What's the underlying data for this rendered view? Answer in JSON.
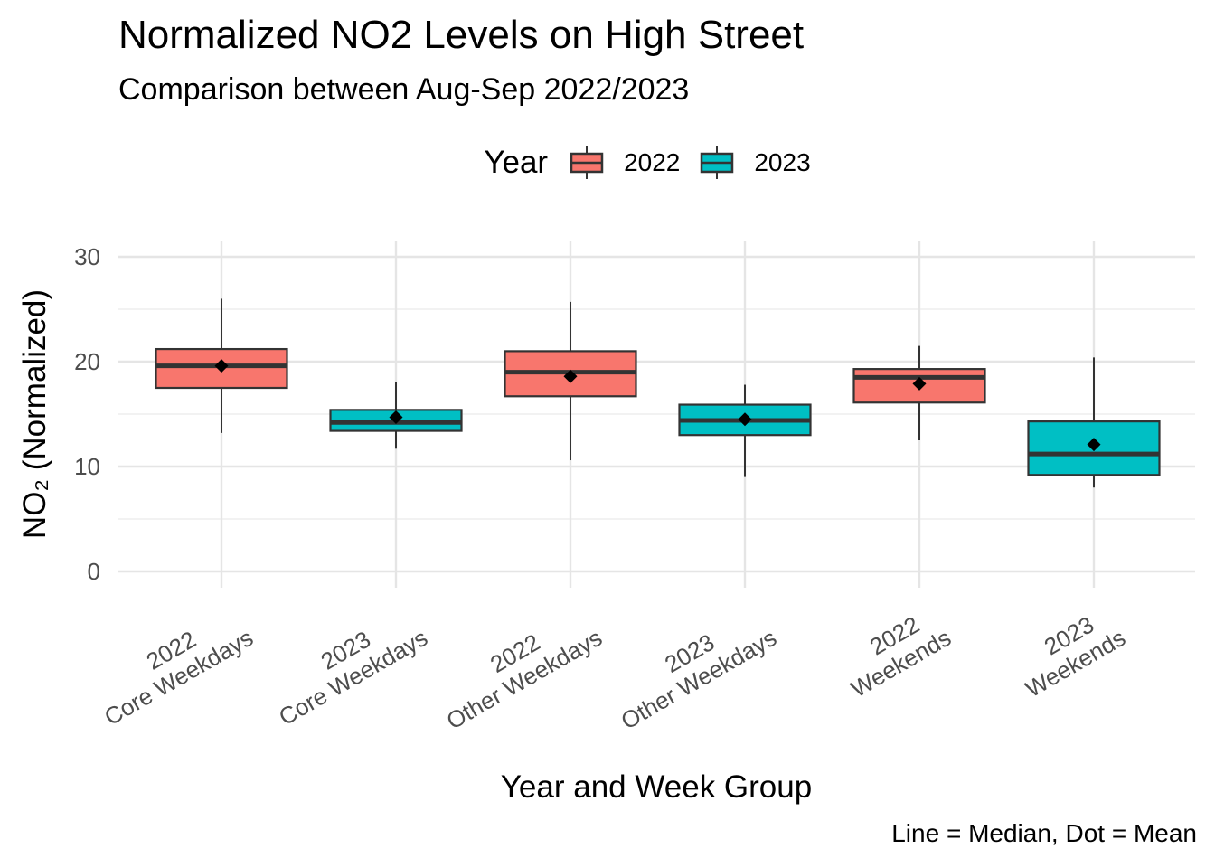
{
  "chart_data": {
    "type": "box",
    "title": "Normalized NO2 Levels on High Street",
    "subtitle": "Comparison between Aug-Sep 2022/2023",
    "xlabel": "Year and Week Group",
    "ylabel": "NO₂ (Normalized)",
    "caption": "Line = Median, Dot = Mean",
    "ylim": [
      0,
      30
    ],
    "yticks": [
      0,
      10,
      20,
      30
    ],
    "grid": true,
    "legend": {
      "title": "Year",
      "position": "top",
      "entries": [
        {
          "label": "2022",
          "color": "#F8766D"
        },
        {
          "label": "2023",
          "color": "#00BFC4"
        }
      ]
    },
    "categories": [
      {
        "line1": "2022",
        "line2": "Core Weekdays",
        "year": "2022",
        "min": 13.2,
        "q1": 17.5,
        "median": 19.6,
        "q3": 21.2,
        "max": 26.0,
        "mean": 19.6
      },
      {
        "line1": "2023",
        "line2": "Core Weekdays",
        "year": "2023",
        "min": 11.7,
        "q1": 13.4,
        "median": 14.2,
        "q3": 15.4,
        "max": 18.1,
        "mean": 14.7
      },
      {
        "line1": "2022",
        "line2": "Other Weekdays",
        "year": "2022",
        "min": 10.6,
        "q1": 16.7,
        "median": 19.0,
        "q3": 21.0,
        "max": 25.7,
        "mean": 18.6
      },
      {
        "line1": "2023",
        "line2": "Other Weekdays",
        "year": "2023",
        "min": 9.0,
        "q1": 13.0,
        "median": 14.4,
        "q3": 15.9,
        "max": 17.8,
        "mean": 14.5
      },
      {
        "line1": "2022",
        "line2": "Weekends",
        "year": "2022",
        "min": 12.5,
        "q1": 16.1,
        "median": 18.5,
        "q3": 19.3,
        "max": 21.5,
        "mean": 17.9
      },
      {
        "line1": "2023",
        "line2": "Weekends",
        "year": "2023",
        "min": 8.0,
        "q1": 9.2,
        "median": 11.2,
        "q3": 14.3,
        "max": 20.4,
        "mean": 12.1
      }
    ]
  }
}
